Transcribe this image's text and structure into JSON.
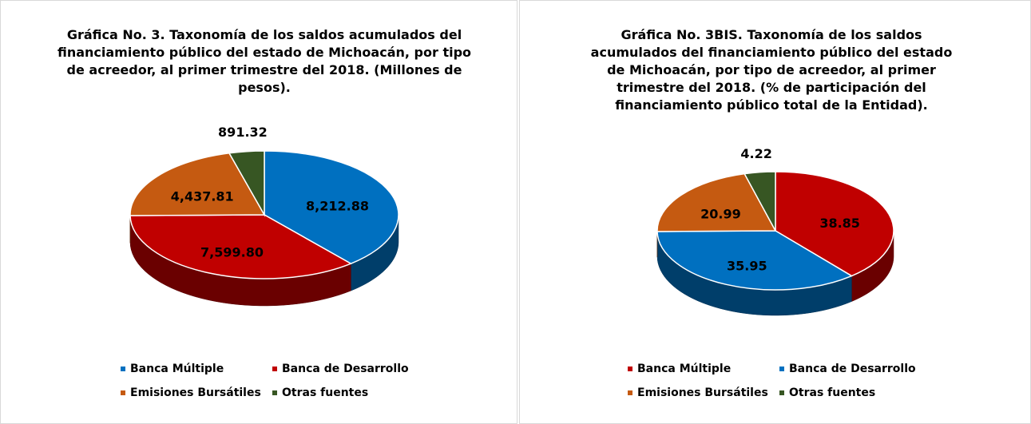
{
  "chart_data": [
    {
      "type": "pie3d",
      "title": "Gráfica No. 3. Taxonomía de los saldos acumulados del financiamiento público del estado de Michoacán, por tipo de acreedor, al primer trimestre del 2018. (Millones de pesos).",
      "categories": [
        "Banca Múltiple",
        "Banca de Desarrollo",
        "Emisiones Bursátiles",
        "Otras fuentes"
      ],
      "values": [
        8212.88,
        7599.8,
        4437.81,
        891.32
      ],
      "value_labels": [
        "8,212.88",
        "7,599.80",
        "4,437.81",
        "891.32"
      ],
      "colors": [
        "#0070c0",
        "#c00000",
        "#c55a11",
        "#375623"
      ]
    },
    {
      "type": "pie3d",
      "title": "Gráfica No. 3BIS. Taxonomía de los saldos acumulados del financiamiento público del estado de Michoacán, por tipo de acreedor, al primer trimestre del 2018. (% de participación del financiamiento público total de la Entidad).",
      "categories": [
        "Banca Múltiple",
        "Banca de Desarrollo",
        "Emisiones Bursátiles",
        "Otras fuentes"
      ],
      "values": [
        38.85,
        35.95,
        20.99,
        4.22
      ],
      "colors": [
        "#c00000",
        "#0070c0",
        "#c55a11",
        "#375623"
      ]
    }
  ]
}
